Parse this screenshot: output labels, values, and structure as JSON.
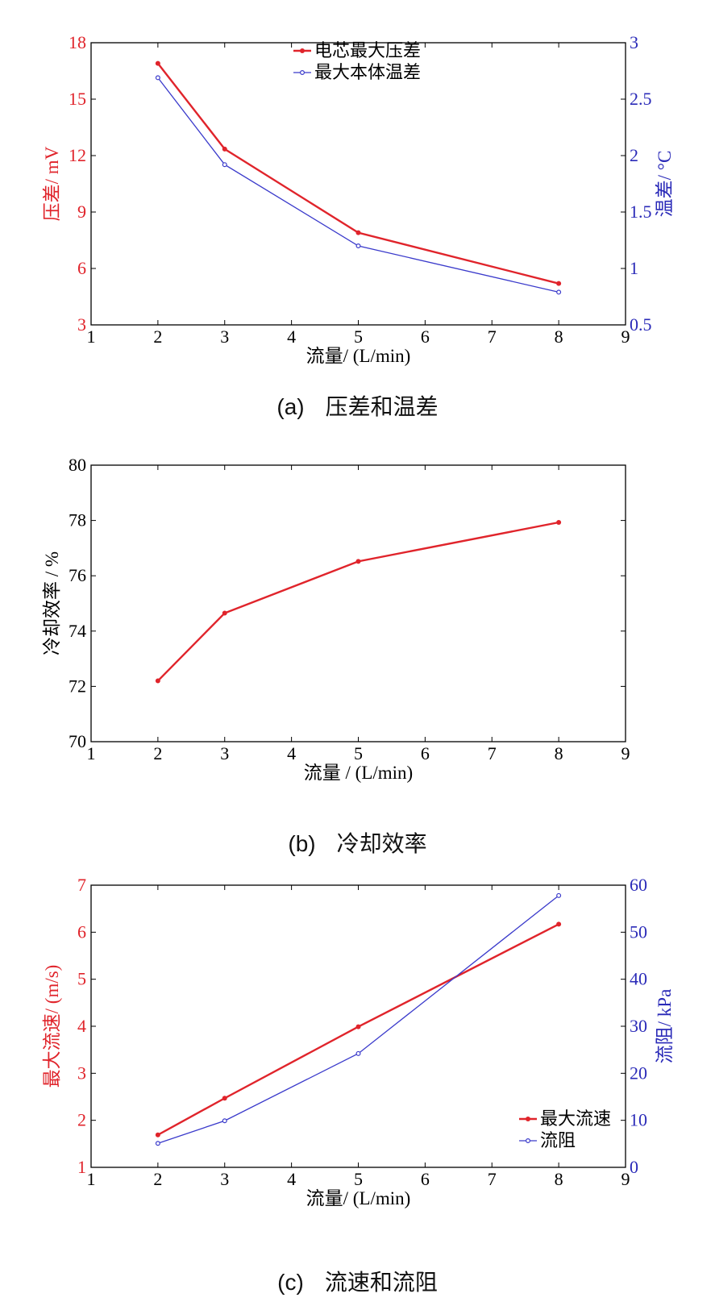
{
  "captions": [
    {
      "letter": "(a)",
      "text": "压差和温差"
    },
    {
      "letter": "(b)",
      "text": "冷却效率"
    },
    {
      "letter": "(c)",
      "text": "流速和流阻"
    }
  ],
  "chart_data": [
    {
      "type": "line",
      "title": "",
      "xlabel": "流量/ (L/min)",
      "ylabel": "压差/ mV",
      "y2label": "温差/ °C",
      "xlim": [
        1,
        9
      ],
      "ylim": [
        3,
        18
      ],
      "y2lim": [
        0.5,
        3
      ],
      "xticks": [
        "1",
        "2",
        "3",
        "4",
        "5",
        "6",
        "7",
        "8",
        "9"
      ],
      "yticks": [
        "3",
        "6",
        "9",
        "12",
        "15",
        "18"
      ],
      "y2ticks": [
        "0.5",
        "1",
        "1.5",
        "2",
        "2.5",
        "3"
      ],
      "grid": false,
      "legend_position": "top-center",
      "x": [
        2,
        3,
        5,
        8
      ],
      "series": [
        {
          "name": "电芯最大压差",
          "axis": "left",
          "values": [
            16.9,
            12.35,
            7.9,
            5.2
          ],
          "color": "#e0242b"
        },
        {
          "name": "最大本体温差",
          "axis": "right",
          "values": [
            2.69,
            1.92,
            1.2,
            0.79
          ],
          "color": "#3a3acb"
        }
      ]
    },
    {
      "type": "line",
      "title": "",
      "xlabel": "流量 / (L/min)",
      "ylabel": "冷却效率 / %",
      "xlim": [
        1,
        9
      ],
      "ylim": [
        70,
        80
      ],
      "xticks": [
        "1",
        "2",
        "3",
        "4",
        "5",
        "6",
        "7",
        "8",
        "9"
      ],
      "yticks": [
        "70",
        "72",
        "74",
        "76",
        "78",
        "80"
      ],
      "grid": false,
      "x": [
        2,
        3,
        5,
        8
      ],
      "series": [
        {
          "axis": "left",
          "values": [
            72.2,
            74.65,
            76.52,
            77.93
          ],
          "color": "#e0242b"
        }
      ]
    },
    {
      "type": "line",
      "title": "",
      "xlabel": "流量/ (L/min)",
      "ylabel": "最大流速/ (m/s)",
      "y2label": "流阻/ kPa",
      "xlim": [
        1,
        9
      ],
      "ylim": [
        1,
        7
      ],
      "y2lim": [
        0,
        60
      ],
      "xticks": [
        "1",
        "2",
        "3",
        "4",
        "5",
        "6",
        "7",
        "8",
        "9"
      ],
      "yticks": [
        "1",
        "2",
        "3",
        "4",
        "5",
        "6",
        "7"
      ],
      "y2ticks": [
        "0",
        "10",
        "20",
        "30",
        "40",
        "50",
        "60"
      ],
      "grid": false,
      "legend_position": "bottom-right",
      "x": [
        2,
        3,
        5,
        8
      ],
      "series": [
        {
          "name": "最大流速",
          "axis": "left",
          "values": [
            1.69,
            2.47,
            3.99,
            6.17
          ],
          "color": "#e0242b"
        },
        {
          "name": "流阻",
          "axis": "right",
          "values": [
            5.1,
            9.9,
            24.2,
            57.8
          ],
          "color": "#3a3acb"
        }
      ]
    }
  ],
  "colors": {
    "axis": "#000000",
    "left_axis_text": "#e0242b",
    "right_axis_text": "#2a2ab8"
  }
}
